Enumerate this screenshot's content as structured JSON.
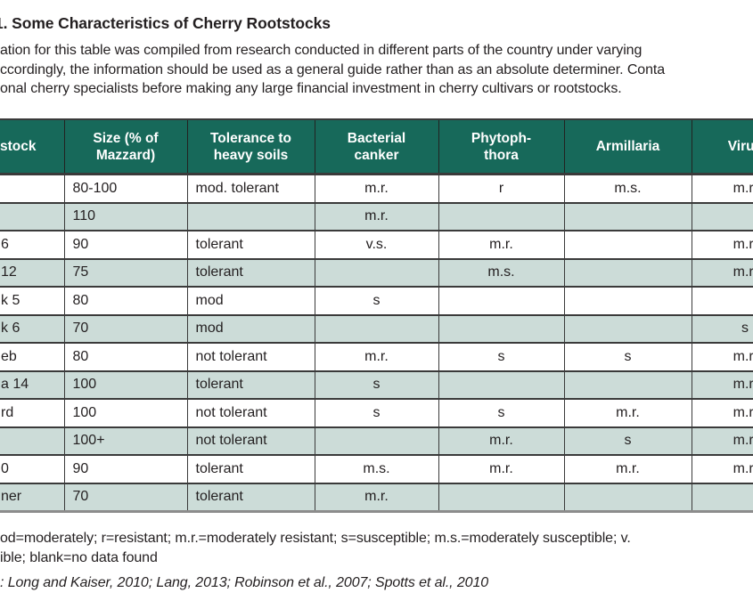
{
  "title": "1. Some Characteristics of Cherry Rootstocks",
  "intro_lines": [
    "ation for this table was compiled from research conducted in different parts of the country under varying",
    "ccordingly, the information should be used as a general guide rather than as an absolute determiner. Conta",
    "onal cherry specialists before making any large financial investment in cherry cultivars or rootstocks."
  ],
  "table": {
    "header_labels": [
      "stock",
      "Size (% of\nMazzard)",
      "Tolerance to\nheavy soils",
      "Bacterial\ncanker",
      "Phytoph-\nthora",
      "Armillaria",
      "Virus"
    ],
    "rows": [
      [
        "",
        "80-100",
        "mod. tolerant",
        "m.r.",
        "r",
        "m.s.",
        "m.r."
      ],
      [
        "",
        "110",
        "",
        "m.r.",
        "",
        "",
        ""
      ],
      [
        "6",
        "90",
        "tolerant",
        "v.s.",
        "m.r.",
        "",
        "m.r."
      ],
      [
        "12",
        "75",
        "tolerant",
        "",
        "m.s.",
        "",
        "m.r."
      ],
      [
        "k 5",
        "80",
        "mod",
        "s",
        "",
        "",
        ""
      ],
      [
        "k 6",
        "70",
        "mod",
        "",
        "",
        "",
        "s"
      ],
      [
        "eb",
        "80",
        "not tolerant",
        "m.r.",
        "s",
        "s",
        "m.r."
      ],
      [
        "a 14",
        "100",
        "tolerant",
        "s",
        "",
        "",
        "m.r."
      ],
      [
        "rd",
        "100",
        "not tolerant",
        "s",
        "s",
        "m.r.",
        "m.r."
      ],
      [
        "",
        "100+",
        "not tolerant",
        "",
        "m.r.",
        "s",
        "m.r."
      ],
      [
        "0",
        "90",
        "tolerant",
        "m.s.",
        "m.r.",
        "m.r.",
        "m.r."
      ],
      [
        "ner",
        "70",
        "tolerant",
        "m.r.",
        "",
        "",
        ""
      ]
    ]
  },
  "footnotes": {
    "key_line_1": "od=moderately; r=resistant; m.r.=moderately resistant; s=susceptible; m.s.=moderately susceptible; v.",
    "key_line_2": "ible; blank=no data found",
    "sources": ": Long and Kaiser, 2010; Lang, 2013; Robinson et al., 2007; Spotts et al., 2010"
  },
  "colors": {
    "header_bg": "#17695a",
    "row_alt": "#ccdcd8",
    "border_dark": "#3a3a3a",
    "table_bottom_border": "#8c8c8c",
    "text": "#231f20",
    "header_text": "#ffffff"
  }
}
